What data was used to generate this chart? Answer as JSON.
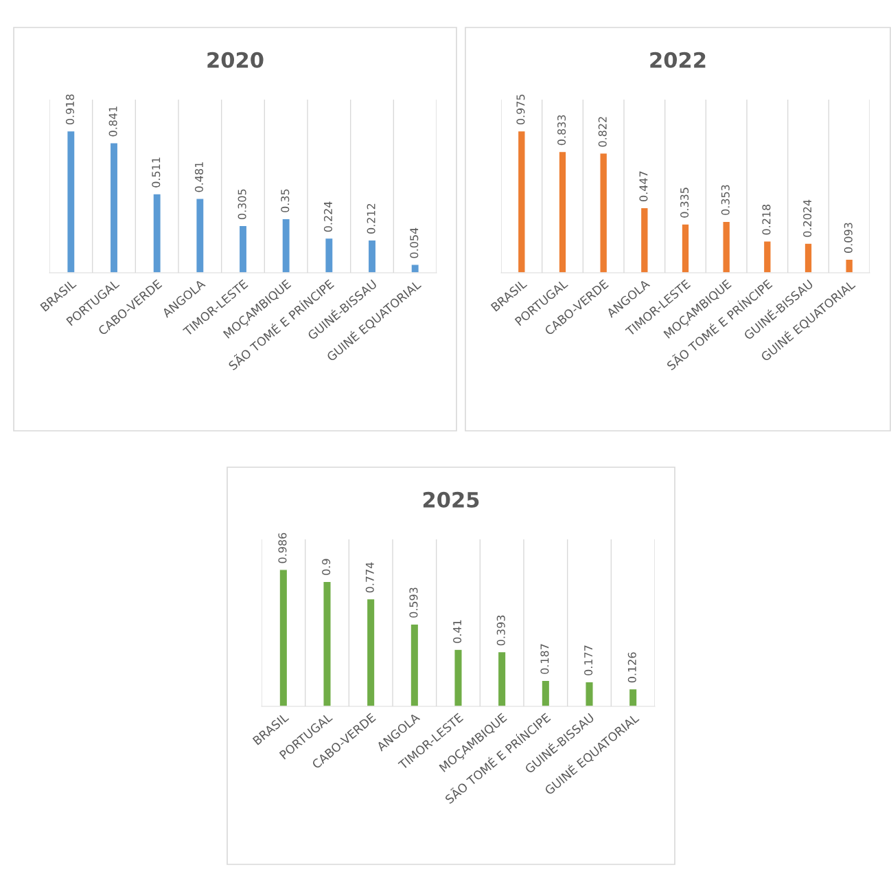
{
  "chart_data": [
    {
      "type": "bar",
      "title": "2020",
      "categories": [
        "BRASIL",
        "PORTUGAL",
        "CABO-VERDE",
        "ANGOLA",
        "TIMOR-LESTE",
        "MOÇAMBIQUE",
        "SÃO TOMÉ E PRÍNCIPE",
        "GUINÉ-BISSAU",
        "GUINÉ EQUATORIAL"
      ],
      "series": [
        {
          "color": "#5b9bd5",
          "values": [
            0.918,
            0.841,
            0.511,
            0.481,
            0.305,
            0.35,
            0.224,
            0.212,
            0.054
          ]
        }
      ],
      "data_labels": true,
      "grid": "x",
      "legend": false
    },
    {
      "type": "bar",
      "title": "2022",
      "categories": [
        "BRASIL",
        "PORTUGAL",
        "CABO-VERDE",
        "ANGOLA",
        "TIMOR-LESTE",
        "MOÇAMBIQUE",
        "SÃO TOMÉ E PRÍNCIPE",
        "GUINÉ-BISSAU",
        "GUINÉ EQUATORIAL"
      ],
      "series": [
        {
          "color": "#ed7d31",
          "values": [
            0.975,
            0.833,
            0.822,
            0.447,
            0.335,
            0.353,
            0.218,
            0.2024,
            0.093
          ]
        }
      ],
      "data_labels": true,
      "grid": "x",
      "legend": false
    },
    {
      "type": "bar",
      "title": "2025",
      "categories": [
        "BRASIL",
        "PORTUGAL",
        "CABO-VERDE",
        "ANGOLA",
        "TIMOR-LESTE",
        "MOÇAMBIQUE",
        "SÃO TOMÉ E PRÍNCIPE",
        "GUINÉ-BISSAU",
        "GUINÉ EQUATORIAL"
      ],
      "series": [
        {
          "color": "#70ad47",
          "values": [
            0.986,
            0.9,
            0.774,
            0.593,
            0.41,
            0.393,
            0.187,
            0.177,
            0.126
          ]
        }
      ],
      "data_labels": true,
      "grid": "x",
      "legend": false
    }
  ]
}
